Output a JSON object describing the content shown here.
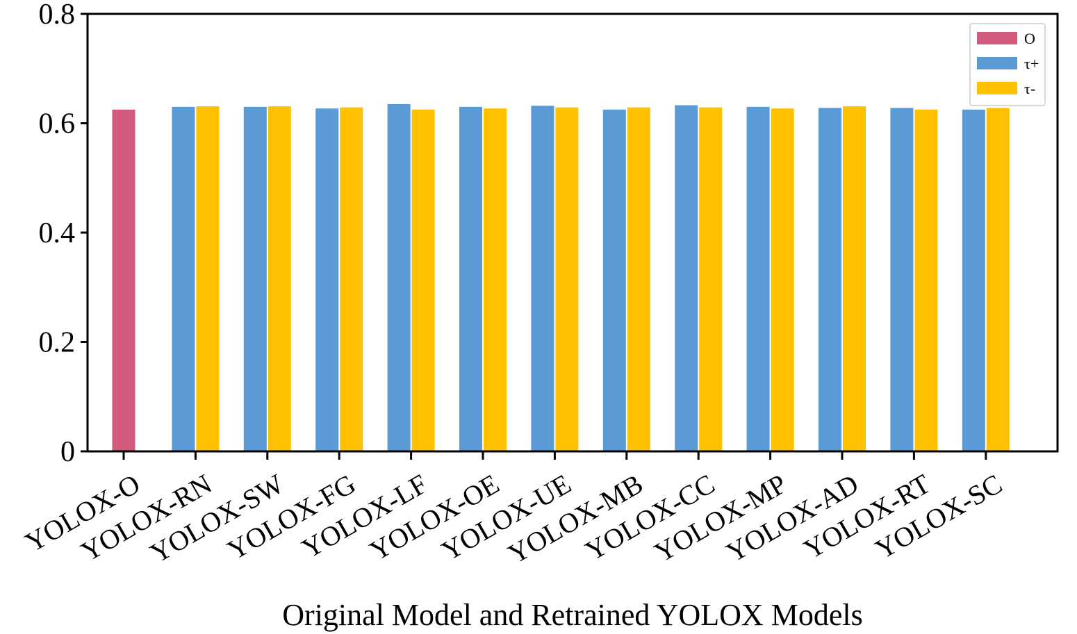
{
  "chart_data": {
    "type": "bar",
    "title": "",
    "xlabel": "Original Model and Retrained YOLOX Models",
    "ylabel": "",
    "ylim": [
      0,
      0.8
    ],
    "yticks": [
      0,
      0.2,
      0.4,
      0.6,
      0.8
    ],
    "ytick_labels": [
      "0",
      "0.2",
      "0.4",
      "0.6",
      "0.8"
    ],
    "grid": false,
    "legend_position": "top-right",
    "categories": [
      "YOLOX-O",
      "YOLOX-RN",
      "YOLOX-SW",
      "YOLOX-FG",
      "YOLOX-LF",
      "YOLOX-OE",
      "YOLOX-UE",
      "YOLOX-MB",
      "YOLOX-CC",
      "YOLOX-MP",
      "YOLOX-AD",
      "YOLOX-RT",
      "YOLOX-SC"
    ],
    "series": [
      {
        "name": "O",
        "color": "#d45a7d",
        "values": [
          0.625,
          null,
          null,
          null,
          null,
          null,
          null,
          null,
          null,
          null,
          null,
          null,
          null
        ]
      },
      {
        "name": "τ+",
        "color": "#5b9bd5",
        "values": [
          null,
          0.63,
          0.63,
          0.627,
          0.635,
          0.63,
          0.632,
          0.625,
          0.633,
          0.63,
          0.628,
          0.628,
          0.625
        ]
      },
      {
        "name": "τ-",
        "color": "#ffc000",
        "values": [
          null,
          0.631,
          0.631,
          0.629,
          0.625,
          0.627,
          0.629,
          0.629,
          0.629,
          0.627,
          0.631,
          0.625,
          0.628
        ]
      }
    ]
  }
}
